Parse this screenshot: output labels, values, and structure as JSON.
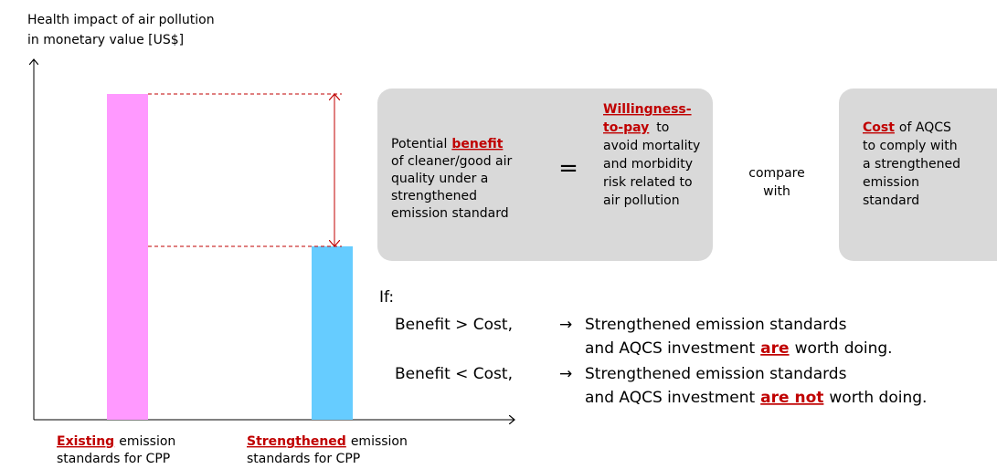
{
  "y_axis_label": [
    "Health impact of air pollution",
    "in monetary value [US$]"
  ],
  "x_labels": [
    {
      "highlight": "Existing",
      "after": "emission",
      "line2": "standards for CPP"
    },
    {
      "highlight": "Strengthened",
      "after": "emission",
      "line2": "standards for CPP"
    }
  ],
  "benefit_box": {
    "left": {
      "before": "Potential",
      "highlight": "benefit",
      "lines": [
        "of cleaner/good air",
        "quality under a",
        "strengthened",
        "emission standard"
      ]
    },
    "equals": "=",
    "right": {
      "highlight": [
        "Willingness-",
        "to-pay"
      ],
      "after": "to",
      "lines": [
        "avoid mortality",
        "and morbidity",
        "risk related to",
        "air pollution"
      ]
    }
  },
  "compare": [
    "compare",
    "with"
  ],
  "cost_box": {
    "highlight": "Cost",
    "after": "of AQCS",
    "lines": [
      "to comply with",
      "a strengthened",
      "emission",
      "standard"
    ]
  },
  "if_label": "If:",
  "conditions": [
    {
      "condition": "Benefit > Cost,",
      "arrow": "→",
      "line1": "Strengthened emission standards",
      "before": "and AQCS investment",
      "highlight": "are",
      "after": "worth doing."
    },
    {
      "condition": "Benefit < Cost,",
      "arrow": "→",
      "line1": "Strengthened emission standards",
      "before": "and AQCS investment",
      "highlight": "are not",
      "after": "worth doing."
    }
  ]
}
